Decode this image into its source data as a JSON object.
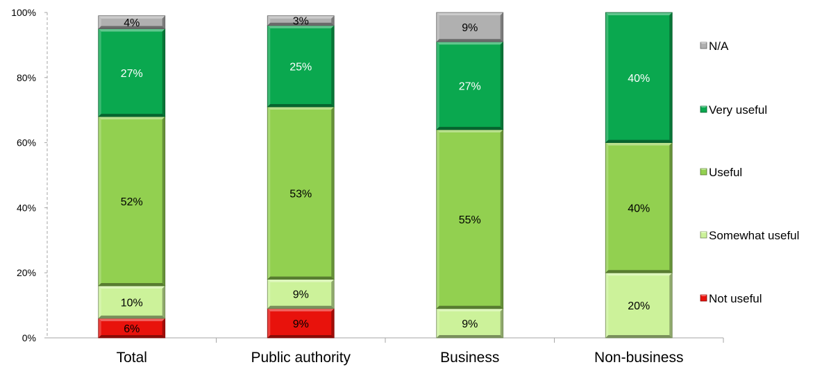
{
  "chart_data": {
    "type": "bar",
    "stacked": true,
    "percent": true,
    "categories": [
      "Total",
      "Public authority",
      "Business",
      "Non-business"
    ],
    "ylim": [
      0,
      100
    ],
    "yticks": [
      0,
      20,
      40,
      60,
      80,
      100
    ],
    "ytick_labels": [
      "0%",
      "20%",
      "40%",
      "60%",
      "80%",
      "100%"
    ],
    "grid": false,
    "legend_position": "right",
    "series": [
      {
        "name": "Not useful",
        "color": "#e8120c",
        "values": [
          6,
          9,
          0,
          0
        ],
        "labels": [
          "6%",
          "9%",
          "",
          ""
        ]
      },
      {
        "name": "Somewhat useful",
        "color": "#ccf29a",
        "values": [
          10,
          9,
          9,
          20
        ],
        "labels": [
          "10%",
          "9%",
          "9%",
          "20%"
        ]
      },
      {
        "name": "Useful",
        "color": "#92d050",
        "values": [
          52,
          53,
          55,
          40
        ],
        "labels": [
          "52%",
          "53%",
          "55%",
          "40%"
        ]
      },
      {
        "name": "Very useful",
        "color": "#0aa84f",
        "values": [
          27,
          25,
          27,
          40
        ],
        "labels": [
          "27%",
          "25%",
          "27%",
          "40%"
        ]
      },
      {
        "name": "N/A",
        "color": "#b0b0b0",
        "values": [
          4,
          3,
          9,
          0
        ],
        "labels": [
          "4%",
          "3%",
          "9%",
          ""
        ]
      }
    ],
    "legend_order": [
      "N/A",
      "Very useful",
      "Useful",
      "Somewhat useful",
      "Not useful"
    ]
  }
}
